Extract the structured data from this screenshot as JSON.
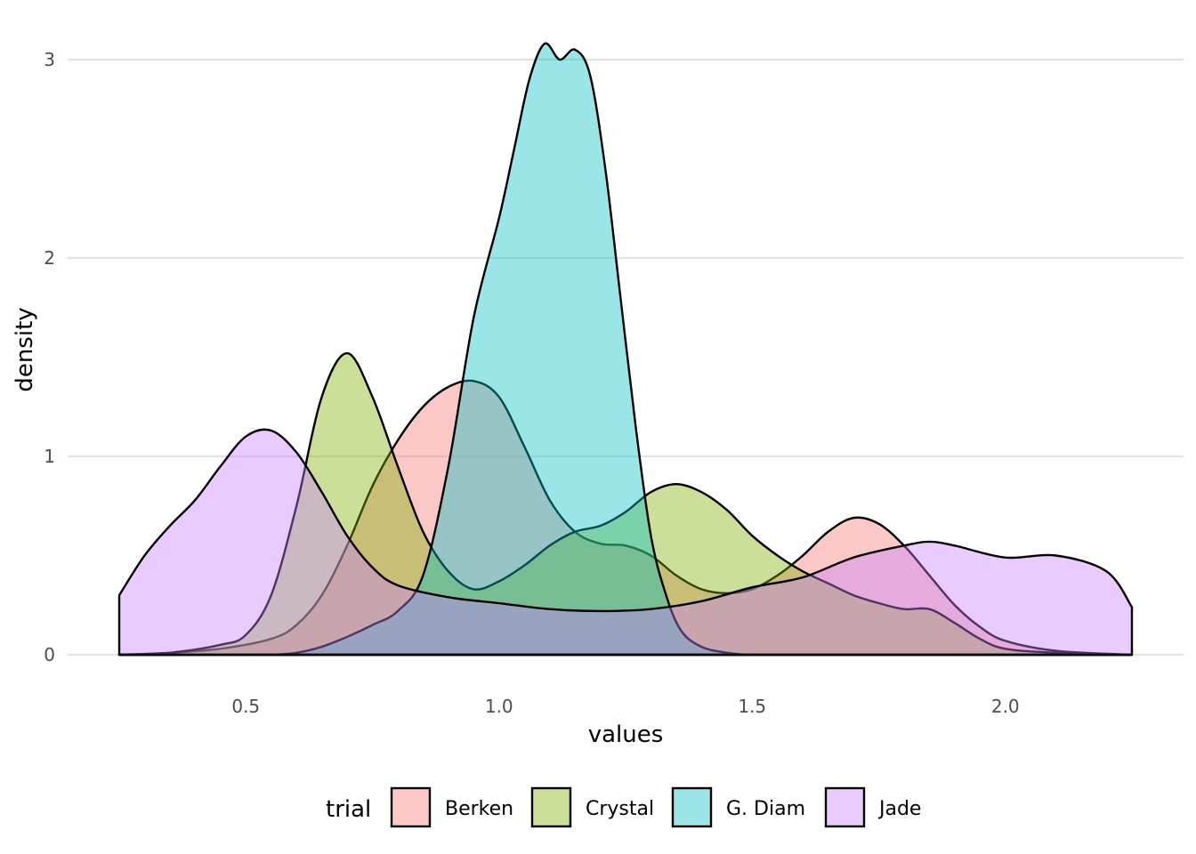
{
  "chart_data": {
    "type": "area",
    "subtype": "density",
    "xlabel": "values",
    "ylabel": "density",
    "xlim": [
      0.25,
      2.25
    ],
    "ylim": [
      0,
      3.1
    ],
    "x_ticks": [
      0.5,
      1.0,
      1.5,
      2.0
    ],
    "x_tick_labels": [
      "0.5",
      "1.0",
      "1.5",
      "2.0"
    ],
    "y_ticks": [
      0,
      1,
      2,
      3
    ],
    "y_tick_labels": [
      "0",
      "1",
      "2",
      "3"
    ],
    "grid": "horizontal-major",
    "fill_opacity": 0.4,
    "legend": {
      "title": "trial",
      "position": "bottom"
    },
    "series": [
      {
        "name": "Berken",
        "color": "#F8766D",
        "x": [
          0.25,
          0.35,
          0.45,
          0.55,
          0.6,
          0.65,
          0.7,
          0.75,
          0.8,
          0.85,
          0.9,
          0.95,
          1.0,
          1.05,
          1.1,
          1.15,
          1.2,
          1.25,
          1.3,
          1.35,
          1.4,
          1.45,
          1.5,
          1.55,
          1.6,
          1.65,
          1.7,
          1.75,
          1.8,
          1.85,
          1.9,
          1.95,
          2.0,
          2.1,
          2.25
        ],
        "y": [
          0.0,
          0.01,
          0.03,
          0.08,
          0.15,
          0.3,
          0.55,
          0.85,
          1.08,
          1.25,
          1.35,
          1.38,
          1.3,
          1.05,
          0.78,
          0.62,
          0.56,
          0.55,
          0.5,
          0.4,
          0.33,
          0.31,
          0.33,
          0.4,
          0.5,
          0.62,
          0.69,
          0.66,
          0.55,
          0.4,
          0.25,
          0.14,
          0.07,
          0.02,
          0.0
        ]
      },
      {
        "name": "Crystal",
        "color": "#7CAE00",
        "x": [
          0.25,
          0.35,
          0.45,
          0.5,
          0.55,
          0.6,
          0.65,
          0.7,
          0.75,
          0.8,
          0.85,
          0.9,
          0.95,
          1.0,
          1.05,
          1.1,
          1.15,
          1.2,
          1.25,
          1.3,
          1.35,
          1.4,
          1.45,
          1.5,
          1.55,
          1.6,
          1.65,
          1.7,
          1.75,
          1.8,
          1.85,
          1.9,
          1.95,
          2.0,
          2.1,
          2.25
        ],
        "y": [
          0.0,
          0.01,
          0.05,
          0.1,
          0.3,
          0.75,
          1.3,
          1.52,
          1.3,
          0.95,
          0.62,
          0.42,
          0.33,
          0.37,
          0.45,
          0.55,
          0.62,
          0.65,
          0.72,
          0.82,
          0.86,
          0.82,
          0.73,
          0.6,
          0.5,
          0.42,
          0.36,
          0.3,
          0.26,
          0.23,
          0.23,
          0.16,
          0.08,
          0.03,
          0.01,
          0.0
        ]
      },
      {
        "name": "G. Diam",
        "color": "#00BFC4",
        "x": [
          0.25,
          0.5,
          0.55,
          0.6,
          0.65,
          0.7,
          0.75,
          0.8,
          0.85,
          0.9,
          0.95,
          1.0,
          1.03,
          1.06,
          1.09,
          1.12,
          1.15,
          1.18,
          1.21,
          1.24,
          1.27,
          1.3,
          1.33,
          1.36,
          1.4,
          1.45,
          1.5,
          1.6,
          1.8,
          2.25
        ],
        "y": [
          0.0,
          0.0,
          0.0,
          0.01,
          0.04,
          0.09,
          0.15,
          0.22,
          0.4,
          0.95,
          1.7,
          2.2,
          2.55,
          2.9,
          3.08,
          3.0,
          3.05,
          2.92,
          2.45,
          1.8,
          1.15,
          0.6,
          0.3,
          0.12,
          0.04,
          0.01,
          0.0,
          0.0,
          0.0,
          0.0
        ]
      },
      {
        "name": "Jade",
        "color": "#C77CFF",
        "x": [
          0.25,
          0.3,
          0.35,
          0.4,
          0.45,
          0.5,
          0.55,
          0.6,
          0.65,
          0.7,
          0.75,
          0.8,
          0.9,
          1.0,
          1.1,
          1.2,
          1.3,
          1.4,
          1.5,
          1.6,
          1.7,
          1.8,
          1.85,
          1.9,
          2.0,
          2.1,
          2.2,
          2.25
        ],
        "y": [
          0.3,
          0.5,
          0.65,
          0.78,
          0.95,
          1.1,
          1.13,
          1.02,
          0.82,
          0.6,
          0.44,
          0.35,
          0.29,
          0.26,
          0.23,
          0.22,
          0.23,
          0.27,
          0.34,
          0.39,
          0.49,
          0.55,
          0.57,
          0.55,
          0.49,
          0.5,
          0.42,
          0.24
        ]
      }
    ]
  }
}
